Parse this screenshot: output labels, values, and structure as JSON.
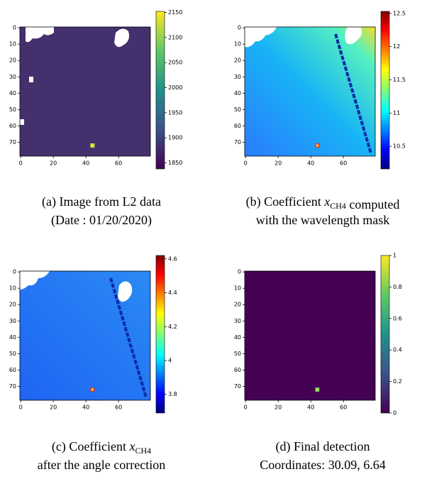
{
  "chart_data": [
    {
      "type": "heatmap",
      "cmap": "viridis",
      "xlim": [
        -0.5,
        79.5
      ],
      "ylim": [
        78.5,
        -0.5
      ],
      "xticks": [
        0,
        20,
        40,
        60
      ],
      "yticks": [
        0,
        10,
        20,
        30,
        40,
        50,
        60,
        70
      ],
      "clim": [
        1838,
        2152
      ],
      "cticks": [
        1850,
        1900,
        1950,
        2000,
        2050,
        2100,
        2150
      ],
      "caption": [
        [
          "(a) Image from L2 data"
        ],
        [
          "(Date : 01/20/2020)"
        ]
      ]
    },
    {
      "type": "heatmap",
      "cmap": "jet",
      "xlim": [
        -0.5,
        79.5
      ],
      "ylim": [
        78.5,
        -0.5
      ],
      "xticks": [
        0,
        20,
        40,
        60
      ],
      "yticks": [
        0,
        10,
        20,
        30,
        40,
        50,
        60,
        70
      ],
      "clim": [
        10.16,
        12.53
      ],
      "cticks": [
        10.5,
        11.0,
        11.5,
        12.0,
        12.5
      ],
      "caption": [
        [
          "(b) Coefficient ",
          {
            "var": "x",
            "sub": "CH4"
          },
          " computed"
        ],
        [
          "with the wavelength mask"
        ]
      ]
    },
    {
      "type": "heatmap",
      "cmap": "jet",
      "xlim": [
        -0.5,
        79.5
      ],
      "ylim": [
        78.5,
        -0.5
      ],
      "xticks": [
        0,
        20,
        40,
        60
      ],
      "yticks": [
        0,
        10,
        20,
        30,
        40,
        50,
        60,
        70
      ],
      "clim": [
        3.69,
        4.62
      ],
      "cticks": [
        3.8,
        4.0,
        4.2,
        4.4,
        4.6
      ],
      "caption": [
        [
          "(c) Coefficient ",
          {
            "var": "x",
            "sub": "CH4"
          }
        ],
        [
          "after the angle correction"
        ]
      ]
    },
    {
      "type": "heatmap",
      "cmap": "viridis",
      "xlim": [
        -0.5,
        79.5
      ],
      "ylim": [
        78.5,
        -0.5
      ],
      "xticks": [
        0,
        20,
        40,
        60
      ],
      "yticks": [
        0,
        10,
        20,
        30,
        40,
        50,
        60,
        70
      ],
      "clim": [
        0.0,
        1.0
      ],
      "cticks": [
        0.0,
        0.2,
        0.4,
        0.6,
        0.8,
        1.0
      ],
      "caption": [
        [
          "(d) Final detection"
        ],
        [
          "Coordinates: 30.09, 6.64"
        ]
      ]
    }
  ]
}
